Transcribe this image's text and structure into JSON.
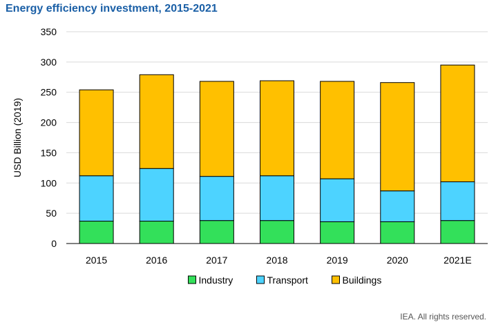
{
  "chart_data": {
    "type": "bar",
    "stacked": true,
    "title": "Energy efficiency investment, 2015-2021",
    "xlabel": "",
    "ylabel": "USD Billion (2019)",
    "ylim": [
      0,
      350
    ],
    "yticks": [
      0,
      50,
      100,
      150,
      200,
      250,
      300,
      350
    ],
    "grid": true,
    "legend_position": "bottom",
    "categories": [
      "2015",
      "2016",
      "2017",
      "2018",
      "2019",
      "2020",
      "2021E"
    ],
    "series": [
      {
        "name": "Industry",
        "color": "#33e05a",
        "values": [
          37,
          37,
          38,
          38,
          36,
          36,
          38
        ]
      },
      {
        "name": "Transport",
        "color": "#4dd3ff",
        "values": [
          75,
          87,
          73,
          74,
          71,
          51,
          64
        ]
      },
      {
        "name": "Buildings",
        "color": "#ffc000",
        "values": [
          142,
          155,
          157,
          157,
          161,
          179,
          193
        ]
      }
    ]
  },
  "footer": "IEA. All rights reserved."
}
